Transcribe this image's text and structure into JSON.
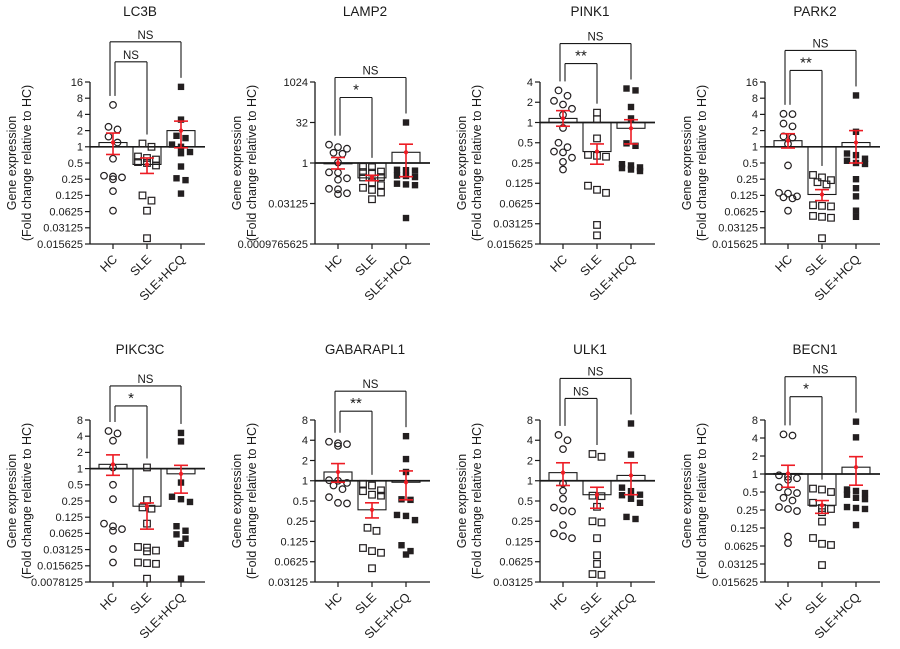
{
  "figure": {
    "ylabel_line1": "Gene expression",
    "ylabel_line2": "(Fold change relative to HC)",
    "categories": [
      "HC",
      "SLE",
      "SLE+HCQ"
    ],
    "colors": {
      "error_bar": "#ed1c24",
      "marker": "#231f20",
      "axis": "#1a1a1a"
    }
  },
  "chart_data": [
    {
      "type": "scatter",
      "title": "LC3B",
      "ylabel": "Gene expression (Fold change relative to HC)",
      "yscale": "log2",
      "baseline": 1,
      "ytick_labels": [
        "16",
        "8",
        "4",
        "2",
        "1",
        "0.5",
        "0.25",
        "0.125",
        "0.0625",
        "0.03125",
        "0.015625"
      ],
      "ylim": [
        0.015625,
        16
      ],
      "categories": [
        "HC",
        "SLE",
        "SLE+HCQ"
      ],
      "series": [
        {
          "name": "HC",
          "marker": "open-circle",
          "values": [
            6,
            2.35,
            2.1,
            1.55,
            1.2,
            0.6,
            0.29,
            0.28,
            0.27,
            0.25,
            0.15,
            0.065
          ],
          "mean": 1.2,
          "sem": [
            0.72,
            1.8
          ]
        },
        {
          "name": "SLE",
          "marker": "open-square",
          "values": [
            1.15,
            1.0,
            0.66,
            0.62,
            0.58,
            0.52,
            0.5,
            0.45,
            0.125,
            0.1,
            0.065,
            0.02
          ],
          "mean": 0.47,
          "sem": [
            0.32,
            0.62
          ]
        },
        {
          "name": "SLE+HCQ",
          "marker": "filled-square",
          "values": [
            13,
            3.2,
            1.6,
            1.45,
            1.1,
            1.0,
            0.8,
            0.76,
            0.43,
            0.26,
            0.24,
            0.135
          ],
          "mean": 2.0,
          "sem": [
            0.96,
            3.0
          ]
        }
      ],
      "significance": [
        {
          "comparison": "HC vs SLE",
          "pair": [
            0,
            1
          ],
          "label": "NS"
        },
        {
          "comparison": "HC vs SLE+HCQ",
          "pair": [
            0,
            2
          ],
          "label": "NS"
        }
      ]
    },
    {
      "type": "scatter",
      "title": "LAMP2",
      "ylabel": "Gene expression (Fold change relative to HC)",
      "yscale": "log2",
      "baseline": 1,
      "ytick_labels": [
        "1024",
        "32",
        "1",
        "0.03125",
        "0.0009765625"
      ],
      "ylim": [
        0.0009765625,
        1024
      ],
      "categories": [
        "HC",
        "SLE",
        "SLE+HCQ"
      ],
      "series": [
        {
          "name": "HC",
          "marker": "open-circle",
          "values": [
            4.8,
            3.9,
            3.4,
            2.4,
            2.2,
            1.05,
            0.45,
            0.44,
            0.27,
            0.24,
            0.11,
            0.105,
            0.075,
            0.07
          ],
          "mean": 1.0,
          "sem": [
            0.6,
            1.6
          ]
        },
        {
          "name": "SLE",
          "marker": "open-square",
          "values": [
            0.72,
            0.7,
            0.48,
            0.46,
            0.44,
            0.3,
            0.29,
            0.19,
            0.15,
            0.12,
            0.1,
            0.08,
            0.045
          ],
          "mean": 0.28,
          "sem": [
            0.22,
            0.35
          ]
        },
        {
          "name": "SLE+HCQ",
          "marker": "filled-square",
          "values": [
            32,
            0.56,
            0.54,
            0.52,
            0.34,
            0.33,
            0.3,
            0.17,
            0.16,
            0.15,
            0.009
          ],
          "mean": 2.5,
          "sem": [
            0.31,
            5.0
          ]
        }
      ],
      "significance": [
        {
          "comparison": "HC vs SLE",
          "pair": [
            0,
            1
          ],
          "label": "*"
        },
        {
          "comparison": "HC vs SLE+HCQ",
          "pair": [
            0,
            2
          ],
          "label": "NS"
        }
      ]
    },
    {
      "type": "scatter",
      "title": "PINK1",
      "ylabel": "Gene expression (Fold change relative to HC)",
      "yscale": "log2",
      "baseline": 1,
      "ytick_labels": [
        "4",
        "2",
        "1",
        "0.5",
        "0.25",
        "0.125",
        "0.0625",
        "0.03125",
        "0.015625"
      ],
      "ylim": [
        0.015625,
        4
      ],
      "categories": [
        "HC",
        "SLE",
        "SLE+HCQ"
      ],
      "series": [
        {
          "name": "HC",
          "marker": "open-circle",
          "values": [
            3.0,
            2.5,
            2.1,
            1.85,
            1.6,
            1.3,
            0.83,
            0.5,
            0.43,
            0.37,
            0.36,
            0.3,
            0.26,
            0.2
          ],
          "mean": 1.15,
          "sem": [
            0.88,
            1.5
          ]
        },
        {
          "name": "SLE",
          "marker": "open-square",
          "values": [
            1.4,
            1.12,
            0.58,
            0.33,
            0.32,
            0.31,
            0.115,
            0.1,
            0.09,
            0.03,
            0.021
          ],
          "mean": 0.37,
          "sem": [
            0.24,
            0.48
          ]
        },
        {
          "name": "SLE+HCQ",
          "marker": "filled-square",
          "values": [
            3.2,
            3.0,
            1.7,
            1.15,
            0.49,
            0.45,
            0.24,
            0.23,
            0.215,
            0.21,
            0.2,
            0.19
          ],
          "mean": 0.82,
          "sem": [
            0.48,
            1.1
          ]
        }
      ],
      "significance": [
        {
          "comparison": "HC vs SLE",
          "pair": [
            0,
            1
          ],
          "label": "**"
        },
        {
          "comparison": "HC vs SLE+HCQ",
          "pair": [
            0,
            2
          ],
          "label": "NS"
        }
      ]
    },
    {
      "type": "scatter",
      "title": "PARK2",
      "ylabel": "Gene expression (Fold change relative to HC)",
      "yscale": "log2",
      "baseline": 1,
      "ytick_labels": [
        "16",
        "8",
        "4",
        "2",
        "1",
        "0.5",
        "0.25",
        "0.125",
        "0.0625",
        "0.03125",
        "0.015625"
      ],
      "ylim": [
        0.015625,
        16
      ],
      "categories": [
        "HC",
        "SLE",
        "SLE+HCQ"
      ],
      "series": [
        {
          "name": "HC",
          "marker": "open-circle",
          "values": [
            4.1,
            4.05,
            2.7,
            2.4,
            1.56,
            1.48,
            1.13,
            0.45,
            0.14,
            0.135,
            0.12,
            0.115,
            0.11,
            0.065
          ],
          "mean": 1.3,
          "sem": [
            0.95,
            1.75
          ]
        },
        {
          "name": "SLE",
          "marker": "open-square",
          "values": [
            0.3,
            0.27,
            0.24,
            0.22,
            0.2,
            0.082,
            0.08,
            0.078,
            0.052,
            0.05,
            0.048,
            0.02
          ],
          "mean": 0.13,
          "sem": [
            0.1,
            0.16
          ]
        },
        {
          "name": "SLE+HCQ",
          "marker": "filled-square",
          "values": [
            9,
            1.9,
            0.75,
            0.7,
            0.6,
            0.55,
            0.5,
            0.48,
            0.25,
            0.17,
            0.12,
            0.065,
            0.05
          ],
          "mean": 1.2,
          "sem": [
            0.5,
            2.0
          ]
        }
      ],
      "significance": [
        {
          "comparison": "HC vs SLE",
          "pair": [
            0,
            1
          ],
          "label": "**"
        },
        {
          "comparison": "HC vs SLE+HCQ",
          "pair": [
            0,
            2
          ],
          "label": "NS"
        }
      ]
    },
    {
      "type": "scatter",
      "title": "PIKC3C",
      "ylabel": "Gene expression (Fold change relative to HC)",
      "yscale": "log2",
      "baseline": 1,
      "ytick_labels": [
        "8",
        "4",
        "2",
        "1",
        "0.5",
        "0.25",
        "0.125",
        "0.0625",
        "0.03125",
        "0.015625",
        "0.0078125"
      ],
      "ylim": [
        0.0078125,
        8
      ],
      "categories": [
        "HC",
        "SLE",
        "SLE+HCQ"
      ],
      "series": [
        {
          "name": "HC",
          "marker": "open-circle",
          "values": [
            5,
            4.5,
            3.3,
            1.05,
            0.5,
            0.27,
            0.095,
            0.085,
            0.075,
            0.07,
            0.032,
            0.018
          ],
          "mean": 1.2,
          "sem": [
            0.75,
            1.8
          ]
        },
        {
          "name": "SLE",
          "marker": "open-square",
          "values": [
            1.05,
            0.26,
            0.19,
            0.18,
            0.095,
            0.035,
            0.034,
            0.03,
            0.029,
            0.018,
            0.0175,
            0.017,
            0.009
          ],
          "mean": 0.2,
          "sem": [
            0.075,
            0.23
          ]
        },
        {
          "name": "SLE+HCQ",
          "marker": "filled-square",
          "values": [
            4.6,
            3.2,
            0.55,
            0.3,
            0.27,
            0.24,
            0.085,
            0.07,
            0.06,
            0.05,
            0.04,
            0.009
          ],
          "mean": 0.8,
          "sem": [
            0.35,
            1.15
          ]
        }
      ],
      "significance": [
        {
          "comparison": "HC vs SLE",
          "pair": [
            0,
            1
          ],
          "label": "*"
        },
        {
          "comparison": "HC vs SLE+HCQ",
          "pair": [
            0,
            2
          ],
          "label": "NS"
        }
      ]
    },
    {
      "type": "scatter",
      "title": "GABARAPL1",
      "ylabel": "Gene expression (Fold change relative to HC)",
      "yscale": "log2",
      "baseline": 1,
      "ytick_labels": [
        "8",
        "4",
        "2",
        "1",
        "0.5",
        "0.25",
        "0.125",
        "0.0625",
        "0.03125"
      ],
      "ylim": [
        0.03125,
        8
      ],
      "categories": [
        "HC",
        "SLE",
        "SLE+HCQ"
      ],
      "series": [
        {
          "name": "HC",
          "marker": "open-circle",
          "values": [
            3.8,
            3.6,
            3.5,
            3.3,
            1.02,
            1.0,
            0.93,
            0.85,
            0.75,
            0.57,
            0.47,
            0.46
          ],
          "mean": 1.35,
          "sem": [
            0.95,
            1.8
          ]
        },
        {
          "name": "SLE",
          "marker": "open-square",
          "values": [
            0.9,
            0.85,
            0.72,
            0.7,
            0.62,
            0.6,
            0.2,
            0.18,
            0.1,
            0.09,
            0.085,
            0.05
          ],
          "mean": 0.37,
          "sem": [
            0.28,
            0.47
          ]
        },
        {
          "name": "SLE+HCQ",
          "marker": "filled-square",
          "values": [
            4.6,
            2.1,
            1.35,
            0.53,
            0.52,
            0.31,
            0.3,
            0.26,
            0.11,
            0.09,
            0.08
          ],
          "mean": 0.95,
          "sem": [
            0.52,
            1.4
          ]
        }
      ],
      "significance": [
        {
          "comparison": "HC vs SLE",
          "pair": [
            0,
            1
          ],
          "label": "**"
        },
        {
          "comparison": "HC vs SLE+HCQ",
          "pair": [
            0,
            2
          ],
          "label": "NS"
        }
      ]
    },
    {
      "type": "scatter",
      "title": "ULK1",
      "ylabel": "Gene expression (Fold change relative to HC)",
      "yscale": "log2",
      "baseline": 1,
      "ytick_labels": [
        "8",
        "4",
        "2",
        "1",
        "0.5",
        "0.25",
        "0.125",
        "0.0625",
        "0.03125"
      ],
      "ylim": [
        0.03125,
        8
      ],
      "categories": [
        "HC",
        "SLE",
        "SLE+HCQ"
      ],
      "series": [
        {
          "name": "HC",
          "marker": "open-circle",
          "values": [
            4.8,
            4.0,
            2.95,
            0.91,
            0.71,
            0.54,
            0.4,
            0.36,
            0.35,
            0.22,
            0.165,
            0.15,
            0.14
          ],
          "mean": 1.32,
          "sem": [
            0.85,
            1.85
          ]
        },
        {
          "name": "SLE",
          "marker": "open-square",
          "values": [
            2.5,
            2.27,
            0.6,
            0.59,
            0.41,
            0.25,
            0.24,
            0.14,
            0.078,
            0.058,
            0.041,
            0.04
          ],
          "mean": 0.62,
          "sem": [
            0.39,
            0.8
          ]
        },
        {
          "name": "SLE+HCQ",
          "marker": "filled-square",
          "values": [
            7.1,
            2.45,
            0.79,
            0.7,
            0.62,
            0.61,
            0.54,
            0.47,
            0.29,
            0.27
          ],
          "mean": 1.2,
          "sem": [
            0.62,
            1.85
          ]
        }
      ],
      "significance": [
        {
          "comparison": "HC vs SLE",
          "pair": [
            0,
            1
          ],
          "label": "NS"
        },
        {
          "comparison": "HC vs SLE+HCQ",
          "pair": [
            0,
            2
          ],
          "label": "NS"
        }
      ]
    },
    {
      "type": "scatter",
      "title": "BECN1",
      "ylabel": "Gene expression (Fold change relative to HC)",
      "yscale": "log2",
      "baseline": 1,
      "ytick_labels": [
        "8",
        "4",
        "2",
        "1",
        "0.5",
        "0.25",
        "0.125",
        "0.0625",
        "0.03125",
        "0.015625"
      ],
      "ylim": [
        0.015625,
        8
      ],
      "categories": [
        "HC",
        "SLE",
        "SLE+HCQ"
      ],
      "series": [
        {
          "name": "HC",
          "marker": "open-circle",
          "values": [
            4.6,
            4.4,
            0.95,
            0.9,
            0.85,
            0.8,
            0.6,
            0.5,
            0.48,
            0.4,
            0.36,
            0.28,
            0.26,
            0.24,
            0.09,
            0.07
          ],
          "mean": 1.02,
          "sem": [
            0.6,
            1.4
          ]
        },
        {
          "name": "SLE",
          "marker": "open-square",
          "values": [
            0.57,
            0.55,
            0.5,
            0.33,
            0.27,
            0.26,
            0.23,
            0.16,
            0.085,
            0.068,
            0.065,
            0.03
          ],
          "mean": 0.3,
          "sem": [
            0.22,
            0.36
          ]
        },
        {
          "name": "SLE+HCQ",
          "marker": "filled-square",
          "values": [
            7.5,
            4.1,
            0.55,
            0.52,
            0.48,
            0.45,
            0.4,
            0.38,
            0.28,
            0.27,
            0.26,
            0.14
          ],
          "mean": 1.3,
          "sem": [
            0.65,
            1.95
          ]
        }
      ],
      "significance": [
        {
          "comparison": "HC vs SLE",
          "pair": [
            0,
            1
          ],
          "label": "*"
        },
        {
          "comparison": "HC vs SLE+HCQ",
          "pair": [
            0,
            2
          ],
          "label": "NS"
        }
      ]
    }
  ]
}
